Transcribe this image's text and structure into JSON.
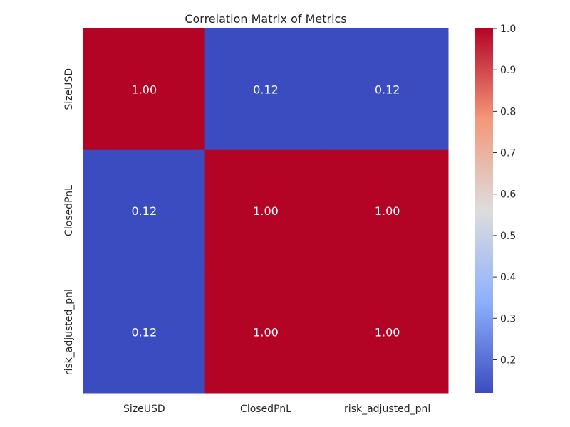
{
  "chart_data": {
    "type": "heatmap",
    "title": "Correlation Matrix of Metrics",
    "xlabel": "",
    "ylabel": "",
    "x_categories": [
      "SizeUSD",
      "ClosedPnL",
      "risk_adjusted_pnl"
    ],
    "y_categories": [
      "SizeUSD",
      "ClosedPnL",
      "risk_adjusted_pnl"
    ],
    "values": [
      [
        1.0,
        0.12,
        0.12
      ],
      [
        0.12,
        1.0,
        1.0
      ],
      [
        0.12,
        1.0,
        1.0
      ]
    ],
    "cell_labels": [
      [
        "1.00",
        "0.12",
        "0.12"
      ],
      [
        "0.12",
        "1.00",
        "1.00"
      ],
      [
        "0.12",
        "1.00",
        "1.00"
      ]
    ],
    "colormap": "coolwarm",
    "colorbar": {
      "min": 0.12,
      "max": 1.0,
      "ticks": [
        0.2,
        0.3,
        0.4,
        0.5,
        0.6,
        0.7,
        0.8,
        0.9,
        1.0
      ],
      "tick_labels": [
        "0.2",
        "0.3",
        "0.4",
        "0.5",
        "0.6",
        "0.7",
        "0.8",
        "0.9",
        "1.0"
      ]
    },
    "grid": false,
    "legend": "colorbar-right"
  }
}
